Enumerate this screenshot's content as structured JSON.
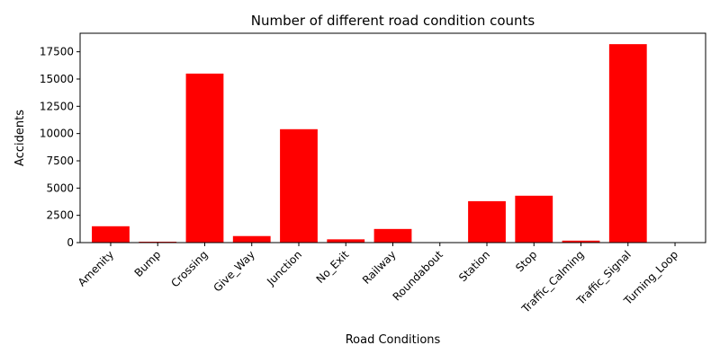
{
  "chart_data": {
    "type": "bar",
    "title": "Number of different road condition counts",
    "xlabel": "Road Conditions",
    "ylabel": "Accidents",
    "categories": [
      "Amenity",
      "Bump",
      "Crossing",
      "Give_Way",
      "Junction",
      "No_Exit",
      "Railway",
      "Roundabout",
      "Station",
      "Stop",
      "Traffic_Calming",
      "Traffic_Signal",
      "Turning_Loop"
    ],
    "values": [
      1500,
      80,
      15500,
      600,
      10400,
      300,
      1250,
      20,
      3800,
      4300,
      180,
      18200,
      0
    ],
    "ylim": [
      0,
      19200
    ],
    "yticks": [
      0,
      2500,
      5000,
      7500,
      10000,
      12500,
      15000,
      17500
    ],
    "ytick_labels": [
      "0",
      "2500",
      "5000",
      "7500",
      "10000",
      "12500",
      "15000",
      "17500"
    ],
    "bar_color": "#ff0000",
    "grid": false,
    "legend": "none"
  }
}
